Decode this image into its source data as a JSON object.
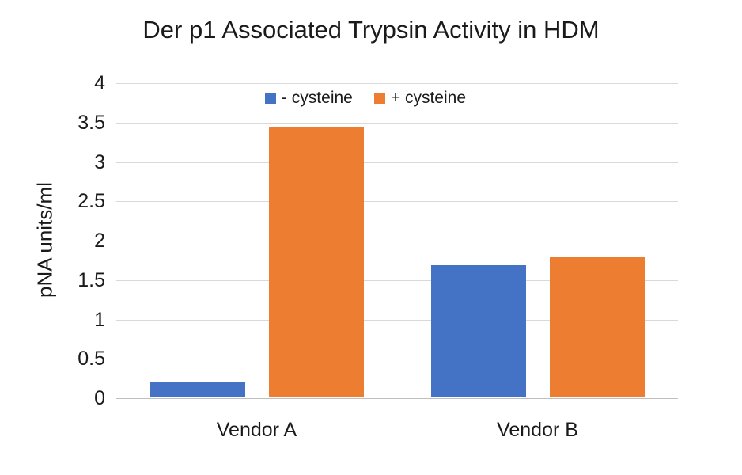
{
  "colors": {
    "background": "#ffffff",
    "text": "#1a1a1a",
    "grid": "#d9d9d9",
    "axis_line": "#bfbfbf",
    "series_blue": "#4472c4",
    "series_orange": "#ed7d31"
  },
  "chart_data": {
    "type": "bar",
    "title": "Der p1 Associated Trypsin Activity in HDM",
    "xlabel": "",
    "ylabel": "pNA units/ml",
    "categories": [
      "Vendor A",
      "Vendor B"
    ],
    "series": [
      {
        "name": "- cysteine",
        "color": "#4472c4",
        "values": [
          0.2,
          1.68
        ]
      },
      {
        "name": "+ cysteine",
        "color": "#ed7d31",
        "values": [
          3.43,
          1.79
        ]
      }
    ],
    "ylim": [
      0,
      4
    ],
    "yticks": [
      0,
      0.5,
      1,
      1.5,
      2,
      2.5,
      3,
      3.5,
      4
    ],
    "grid": true,
    "legend_position": "top-center"
  }
}
